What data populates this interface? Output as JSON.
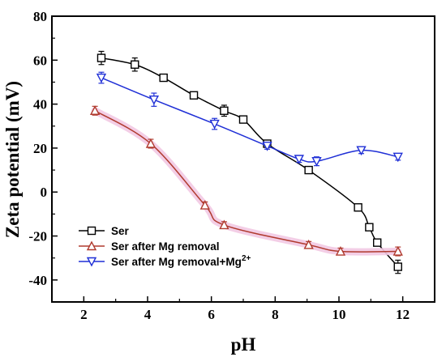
{
  "chart_data": {
    "type": "line",
    "xlabel": "pH",
    "ylabel": "Zeta potential (mV)",
    "xlim": [
      1,
      13
    ],
    "ylim": [
      -50,
      80
    ],
    "xticks": [
      2,
      4,
      6,
      8,
      10,
      12
    ],
    "yticks": [
      -40,
      -20,
      0,
      20,
      40,
      60,
      80
    ],
    "grid": false,
    "legend_position": "bottom-left",
    "series": [
      {
        "name": "Ser",
        "legend_label": "Ser",
        "color": "#000000",
        "marker": "square",
        "highlight": null,
        "x": [
          2.55,
          3.6,
          4.5,
          5.45,
          6.4,
          7.0,
          7.75,
          9.05,
          10.6,
          10.95,
          11.2,
          11.85
        ],
        "y": [
          61,
          58,
          52,
          44,
          37,
          33,
          22,
          10,
          -7,
          -16,
          -23,
          -34
        ],
        "err": [
          3,
          3,
          1.5,
          1,
          2.5,
          1,
          1.5,
          1,
          1,
          1,
          1,
          3
        ]
      },
      {
        "name": "Ser after Mg removal",
        "legend_label": "Ser after Mg removal",
        "color": "#b03a2e",
        "marker": "triangle-up",
        "highlight": "#f2c9e3",
        "x": [
          2.35,
          4.1,
          5.8,
          6.4,
          9.05,
          10.05,
          11.85
        ],
        "y": [
          37,
          22,
          -6,
          -15,
          -24,
          -27,
          -27
        ],
        "err": [
          2,
          2,
          1.5,
          1.5,
          1.5,
          1.5,
          2
        ]
      },
      {
        "name": "Ser after Mg removal+Mg2+",
        "legend_label": "Ser after Mg removal+Mg",
        "legend_sup": "2+",
        "color": "#1f2fd6",
        "marker": "triangle-down",
        "highlight": null,
        "x": [
          2.55,
          4.2,
          6.1,
          7.75,
          8.75,
          9.3,
          10.7,
          11.85
        ],
        "y": [
          52,
          42,
          31,
          21,
          15,
          14,
          19,
          16
        ],
        "err": [
          2.5,
          3,
          2.5,
          1.5,
          1.5,
          2,
          1.5,
          1.5
        ]
      }
    ]
  }
}
